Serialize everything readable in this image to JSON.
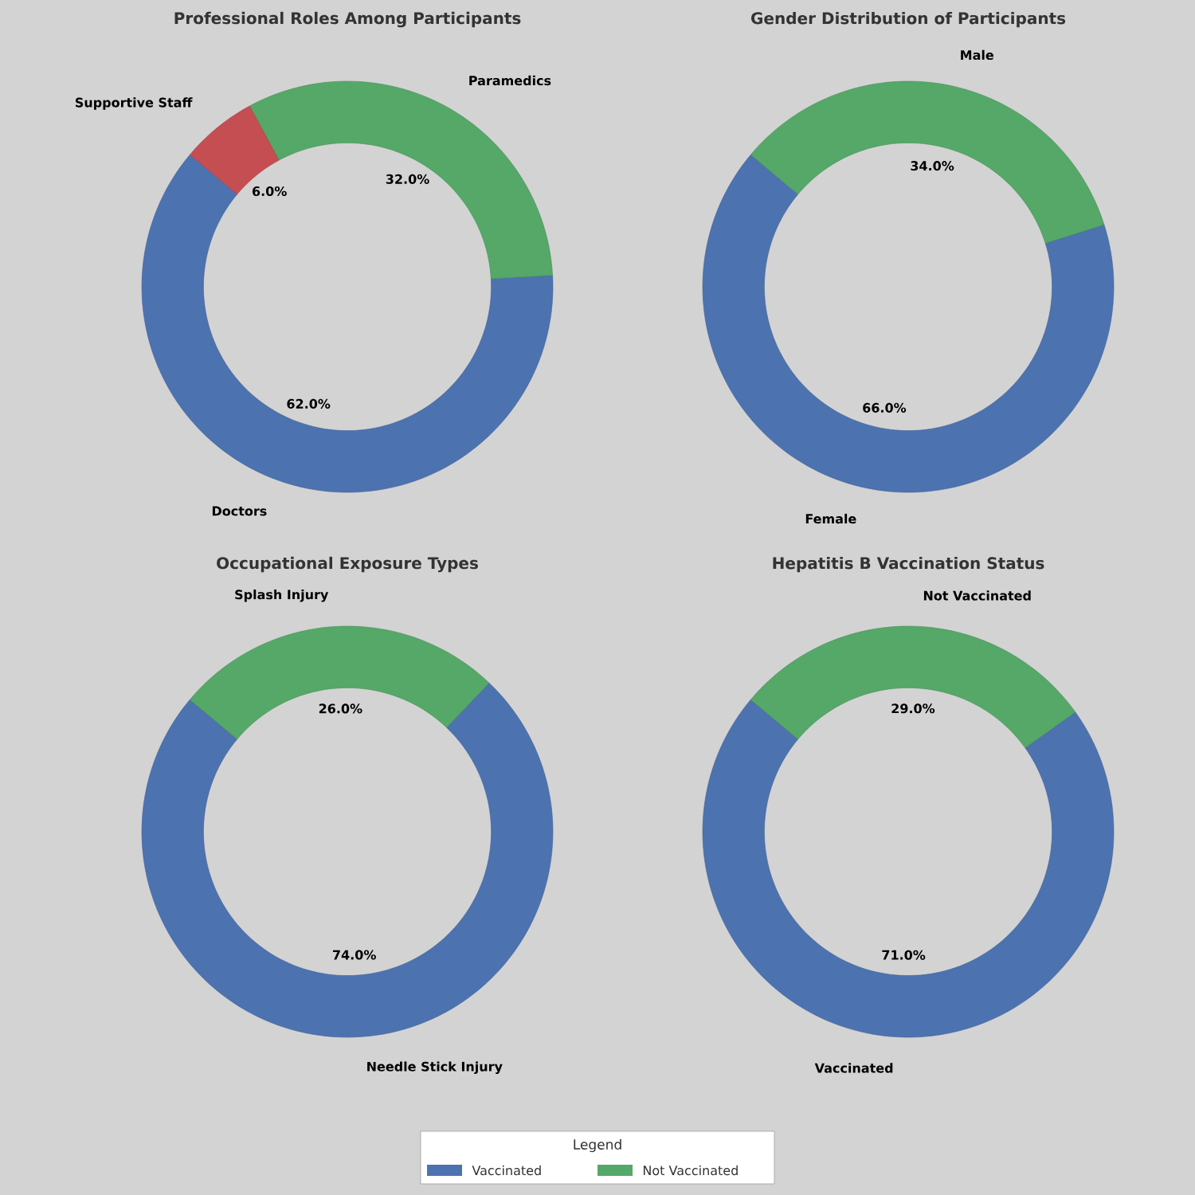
{
  "chart_data": [
    {
      "type": "donut",
      "title": "Professional Roles Among Participants",
      "categories": [
        "Doctors",
        "Paramedics",
        "Supportive Staff"
      ],
      "values": [
        62,
        32,
        6
      ],
      "colors": [
        "#4c72b0",
        "#55a868",
        "#c44e52"
      ],
      "value_labels": [
        "62.0%",
        "32.0%",
        "6.0%"
      ]
    },
    {
      "type": "donut",
      "title": "Gender Distribution of Participants",
      "categories": [
        "Female",
        "Male"
      ],
      "values": [
        66,
        34
      ],
      "colors": [
        "#4c72b0",
        "#55a868"
      ],
      "value_labels": [
        "66.0%",
        "34.0%"
      ]
    },
    {
      "type": "donut",
      "title": "Occupational Exposure Types",
      "categories": [
        "Needle Stick Injury",
        "Splash Injury"
      ],
      "values": [
        74,
        26
      ],
      "colors": [
        "#4c72b0",
        "#55a868"
      ],
      "value_labels": [
        "74.0%",
        "26.0%"
      ]
    },
    {
      "type": "donut",
      "title": "Hepatitis B Vaccination Status",
      "categories": [
        "Vaccinated",
        "Not Vaccinated"
      ],
      "values": [
        71,
        29
      ],
      "colors": [
        "#4c72b0",
        "#55a868"
      ],
      "value_labels": [
        "71.0%",
        "29.0%"
      ],
      "legend": "bottom",
      "legend_title": "Legend"
    }
  ]
}
